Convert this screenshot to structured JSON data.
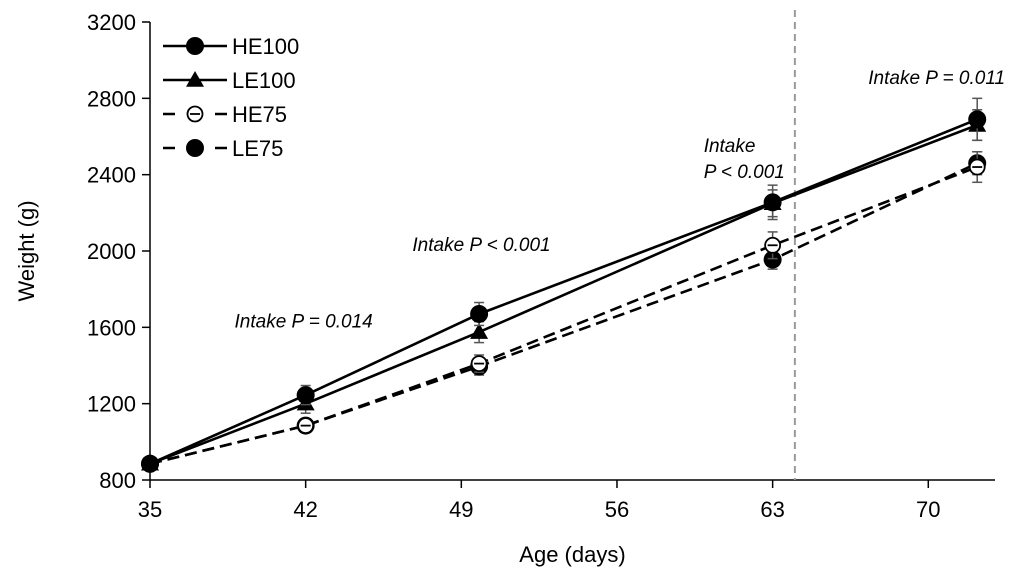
{
  "chart_data": {
    "type": "line",
    "xlabel": "Age (days)",
    "ylabel": "Weight (g)",
    "xlim": [
      35,
      73
    ],
    "ylim": [
      800,
      3200
    ],
    "xticks": [
      35,
      42,
      49,
      56,
      63,
      70
    ],
    "yticks": [
      800,
      1200,
      1600,
      2000,
      2400,
      2800,
      3200
    ],
    "grid": false,
    "legend_position": "top-left",
    "reference_line": {
      "x": 64,
      "style": "dashed",
      "color": "#999999"
    },
    "series": [
      {
        "name": "HE100",
        "line": "solid",
        "marker": "circle-filled",
        "x": [
          35,
          42,
          49.8,
          63,
          72.2
        ],
        "y": [
          885,
          1245,
          1670,
          2255,
          2690
        ],
        "err": [
          15,
          50,
          60,
          90,
          110
        ]
      },
      {
        "name": "LE100",
        "line": "solid",
        "marker": "triangle",
        "x": [
          35,
          42,
          49.8,
          63,
          72.2
        ],
        "y": [
          885,
          1200,
          1575,
          2250,
          2660
        ],
        "err": [
          15,
          50,
          55,
          70,
          80
        ]
      },
      {
        "name": "HE75",
        "line": "dashed",
        "marker": "circle-open",
        "x": [
          35,
          42,
          49.8,
          63,
          72.2
        ],
        "y": [
          885,
          1085,
          1410,
          2030,
          2440
        ],
        "err": [
          15,
          30,
          45,
          70,
          80
        ]
      },
      {
        "name": "LE75",
        "line": "dashed",
        "marker": "circle-filled",
        "x": [
          35,
          42,
          49.8,
          63,
          72.2
        ],
        "y": [
          885,
          1085,
          1395,
          1955,
          2460
        ],
        "err": [
          15,
          30,
          45,
          50,
          60
        ]
      }
    ],
    "annotations": [
      {
        "lines": [
          "Intake P = 0.014"
        ],
        "x": 38.8,
        "y": 1600
      },
      {
        "lines": [
          "Intake P < 0.001"
        ],
        "x": 46.8,
        "y": 2000
      },
      {
        "lines": [
          "Intake",
          "P < 0.001"
        ],
        "x": 59.9,
        "y": 2520
      },
      {
        "lines": [
          "Intake P = 0.011"
        ],
        "x": 67.3,
        "y": 2875
      }
    ]
  }
}
